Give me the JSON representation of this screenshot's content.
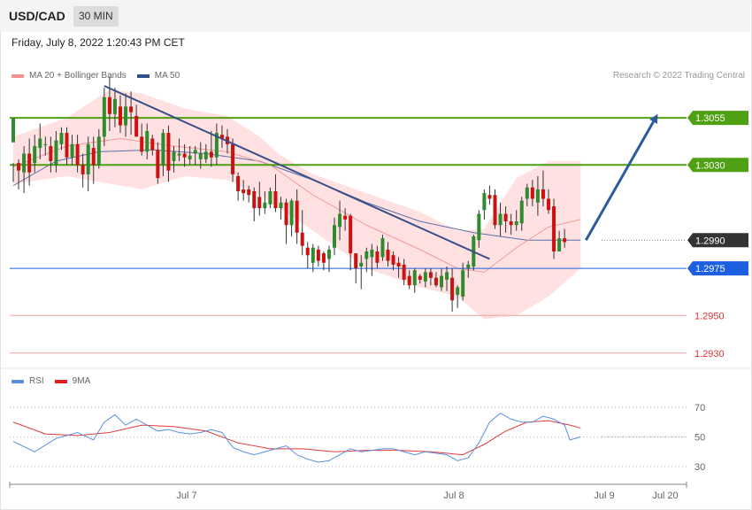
{
  "header": {
    "symbol": "USD/CAD",
    "timeframe": "30 MIN"
  },
  "datetime": "Friday, July 8, 2022 1:20:43 PM CET",
  "legend": {
    "ma20_label": "MA 20 + Bollinger Bands",
    "ma50_label": "MA 50",
    "credit": "Research © 2022 Trading Central",
    "rsi_label": "RSI",
    "rsi_ma_label": "9MA"
  },
  "colors": {
    "band": "#ffe1e1",
    "ma20": "#f19a9a",
    "ma50": "#5b6fa8",
    "up": "#2e8b2e",
    "down": "#cc1111",
    "trend": "#3a4f8a",
    "arrow": "#2e5aa0",
    "resistance": "#4fa012",
    "pivot": "#333333",
    "support1": "#1c5fe0",
    "support2": "#f0a0a0",
    "rsi": "#5a8fe0",
    "rsi_ma": "#e23b3b"
  },
  "chart_data": [
    {
      "type": "candlestick",
      "price_axis_range": [
        1.292,
        1.308
      ],
      "levels": [
        {
          "label": "1.3055",
          "value": 1.3055,
          "kind": "resistance"
        },
        {
          "label": "1.3030",
          "value": 1.303,
          "kind": "resistance"
        },
        {
          "label": "1.2990",
          "value": 1.299,
          "kind": "pivot"
        },
        {
          "label": "1.2975",
          "value": 1.2975,
          "kind": "support"
        },
        {
          "label": "1.2950",
          "value": 1.295,
          "kind": "support"
        },
        {
          "label": "1.2930",
          "value": 1.293,
          "kind": "support"
        }
      ],
      "x_ticks": [
        "Jul 7",
        "Jul 8",
        "Jul 9",
        "Jul 20"
      ],
      "candles": [
        [
          1.3042,
          1.3055,
          1.3031,
          1.3021
        ],
        [
          1.3031,
          1.3027,
          1.3033,
          1.3017
        ],
        [
          1.3026,
          1.3036,
          1.304,
          1.3015
        ],
        [
          1.3036,
          1.3026,
          1.3044,
          1.3019
        ],
        [
          1.3031,
          1.304,
          1.3046,
          1.3026
        ],
        [
          1.3039,
          1.3044,
          1.3052,
          1.3033
        ],
        [
          1.3041,
          1.3041,
          1.3045,
          1.3035
        ],
        [
          1.304,
          1.3032,
          1.3045,
          1.3026
        ],
        [
          1.303,
          1.3043,
          1.3048,
          1.3026
        ],
        [
          1.3041,
          1.3047,
          1.305,
          1.3038
        ],
        [
          1.3047,
          1.3034,
          1.305,
          1.303
        ],
        [
          1.3034,
          1.3041,
          1.3046,
          1.303
        ],
        [
          1.3041,
          1.303,
          1.3046,
          1.3026
        ],
        [
          1.303,
          1.3025,
          1.3036,
          1.3018
        ],
        [
          1.3025,
          1.3041,
          1.3045,
          1.3016
        ],
        [
          1.3039,
          1.303,
          1.3045,
          1.302
        ],
        [
          1.303,
          1.3045,
          1.3049,
          1.3028
        ],
        [
          1.3045,
          1.3066,
          1.3071,
          1.304
        ],
        [
          1.3066,
          1.3057,
          1.3077,
          1.3048
        ],
        [
          1.3057,
          1.3065,
          1.3071,
          1.305
        ],
        [
          1.3061,
          1.3051,
          1.3067,
          1.3047
        ],
        [
          1.3051,
          1.3061,
          1.3068,
          1.3045
        ],
        [
          1.3061,
          1.3058,
          1.3069,
          1.3046
        ],
        [
          1.3056,
          1.3045,
          1.3062,
          1.3045
        ],
        [
          1.3045,
          1.3037,
          1.3052,
          1.3035
        ],
        [
          1.3037,
          1.3048,
          1.3052,
          1.3033
        ],
        [
          1.3044,
          1.3038,
          1.3046,
          1.3035
        ],
        [
          1.3038,
          1.3023,
          1.3042,
          1.302
        ],
        [
          1.303,
          1.3047,
          1.3049,
          1.3024
        ],
        [
          1.3047,
          1.3027,
          1.3051,
          1.3021
        ],
        [
          1.3032,
          1.3037,
          1.304,
          1.3026
        ],
        [
          1.3035,
          1.3036,
          1.3044,
          1.3032
        ],
        [
          1.3036,
          1.3034,
          1.3041,
          1.3029
        ],
        [
          1.3033,
          1.3035,
          1.304,
          1.303
        ],
        [
          1.3036,
          1.3038,
          1.304,
          1.303
        ],
        [
          1.3033,
          1.3036,
          1.3042,
          1.3028
        ],
        [
          1.3033,
          1.3037,
          1.3041,
          1.3031
        ],
        [
          1.3037,
          1.3034,
          1.3048,
          1.3029
        ],
        [
          1.3034,
          1.3047,
          1.3052,
          1.303
        ],
        [
          1.3046,
          1.3044,
          1.3051,
          1.3039
        ],
        [
          1.3045,
          1.3041,
          1.3049,
          1.3036
        ],
        [
          1.3041,
          1.3025,
          1.3044,
          1.3021
        ],
        [
          1.3024,
          1.3016,
          1.3026,
          1.3011
        ],
        [
          1.3017,
          1.3015,
          1.3022,
          1.3011
        ],
        [
          1.3017,
          1.3014,
          1.3019,
          1.301
        ],
        [
          1.3016,
          1.3007,
          1.3018,
          1.3
        ],
        [
          1.3013,
          1.3007,
          1.3021,
          1.3003
        ],
        [
          1.3007,
          1.301,
          1.3016,
          1.3004
        ],
        [
          1.3009,
          1.3016,
          1.3018,
          1.3007
        ],
        [
          1.3016,
          1.3007,
          1.3025,
          1.3005
        ],
        [
          1.3007,
          1.301,
          1.3013,
          1.3001
        ],
        [
          1.301,
          1.2998,
          1.3012,
          1.2988
        ],
        [
          1.2998,
          1.3011,
          1.3012,
          1.2992
        ],
        [
          1.3011,
          1.2994,
          1.3017,
          1.2988
        ],
        [
          1.2994,
          1.2987,
          1.3006,
          1.2982
        ],
        [
          1.2986,
          1.2982,
          1.2989,
          1.2975
        ],
        [
          1.2978,
          1.2986,
          1.2988,
          1.2973
        ],
        [
          1.2985,
          1.2979,
          1.2987,
          1.2976
        ],
        [
          1.2983,
          1.2978,
          1.2984,
          1.2974
        ],
        [
          1.298,
          1.2985,
          1.2987,
          1.2973
        ],
        [
          1.2986,
          1.2998,
          1.3002,
          1.2982
        ],
        [
          1.2997,
          1.3004,
          1.3011,
          1.299
        ],
        [
          1.3003,
          1.3001,
          1.3007,
          1.2995
        ],
        [
          1.3003,
          1.2983,
          1.3004,
          1.2974
        ],
        [
          1.2983,
          1.2975,
          1.2983,
          1.2967
        ],
        [
          1.2976,
          1.2978,
          1.2982,
          1.2964
        ],
        [
          1.298,
          1.2984,
          1.2986,
          1.2973
        ],
        [
          1.2981,
          1.2985,
          1.2988,
          1.2971
        ],
        [
          1.2984,
          1.2978,
          1.2987,
          1.2975
        ],
        [
          1.2981,
          1.2991,
          1.2993,
          1.2979
        ],
        [
          1.2985,
          1.2979,
          1.2989,
          1.2976
        ],
        [
          1.2982,
          1.2977,
          1.2984,
          1.2974
        ],
        [
          1.2978,
          1.2976,
          1.2981,
          1.297
        ],
        [
          1.2977,
          1.2969,
          1.298,
          1.2966
        ],
        [
          1.2971,
          1.2966,
          1.2974,
          1.2964
        ],
        [
          1.2966,
          1.2974,
          1.2975,
          1.2962
        ],
        [
          1.2971,
          1.2969,
          1.2972,
          1.2967
        ],
        [
          1.2968,
          1.2973,
          1.2975,
          1.2965
        ],
        [
          1.2973,
          1.297,
          1.2975,
          1.2966
        ],
        [
          1.297,
          1.2966,
          1.2973,
          1.2965
        ],
        [
          1.2965,
          1.2971,
          1.2975,
          1.2963
        ],
        [
          1.2969,
          1.2973,
          1.2976,
          1.2963
        ],
        [
          1.297,
          1.2958,
          1.2975,
          1.2952
        ],
        [
          1.2961,
          1.2965,
          1.2966,
          1.2954
        ],
        [
          1.296,
          1.2974,
          1.2978,
          1.2958
        ],
        [
          1.2975,
          1.2977,
          1.2979,
          1.297
        ],
        [
          1.2976,
          1.2992,
          1.2993,
          1.2974
        ],
        [
          1.299,
          1.3004,
          1.3006,
          1.2986
        ],
        [
          1.3006,
          1.3015,
          1.3017,
          1.3001
        ],
        [
          1.3014,
          1.3012,
          1.3019,
          1.3009
        ],
        [
          1.3014,
          1.2998,
          1.3017,
          1.2996
        ],
        [
          1.2998,
          1.3004,
          1.301,
          1.2992
        ],
        [
          1.3004,
          1.3,
          1.3008,
          1.2994
        ],
        [
          1.3,
          1.2998,
          1.3004,
          1.2993
        ],
        [
          1.2998,
          1.3,
          1.3006,
          1.2995
        ],
        [
          1.2999,
          1.3011,
          1.3013,
          1.2995
        ],
        [
          1.3012,
          1.3018,
          1.302,
          1.3008
        ],
        [
          1.3018,
          1.3012,
          1.3022,
          1.3008
        ],
        [
          1.301,
          1.3017,
          1.3024,
          1.3003
        ],
        [
          1.3017,
          1.3012,
          1.3027,
          1.3008
        ],
        [
          1.3012,
          1.3006,
          1.3017,
          1.3004
        ],
        [
          1.3008,
          1.2984,
          1.3012,
          1.298
        ],
        [
          1.2984,
          1.2991,
          1.2995,
          1.2985
        ],
        [
          1.2991,
          1.2989,
          1.2996,
          1.2986
        ]
      ],
      "ma20": [
        [
          0,
          1.3029
        ],
        [
          10,
          1.304
        ],
        [
          20,
          1.3044
        ],
        [
          30,
          1.304
        ],
        [
          40,
          1.3037
        ],
        [
          48,
          1.303
        ],
        [
          56,
          1.3014
        ],
        [
          66,
          1.2998
        ],
        [
          76,
          1.2985
        ],
        [
          83,
          1.2975
        ],
        [
          88,
          1.2973
        ],
        [
          94,
          1.2986
        ],
        [
          100,
          1.2997
        ],
        [
          106,
          1.3001
        ]
      ],
      "ma50": [
        [
          0,
          1.3019
        ],
        [
          8,
          1.3032
        ],
        [
          16,
          1.3037
        ],
        [
          26,
          1.3038
        ],
        [
          36,
          1.3036
        ],
        [
          46,
          1.3032
        ],
        [
          56,
          1.3022
        ],
        [
          66,
          1.301
        ],
        [
          76,
          1.3
        ],
        [
          86,
          1.2994
        ],
        [
          96,
          1.299
        ],
        [
          106,
          1.299
        ]
      ],
      "bollinger_upper": [
        [
          0,
          1.3045
        ],
        [
          10,
          1.3055
        ],
        [
          18,
          1.307
        ],
        [
          24,
          1.3068
        ],
        [
          32,
          1.306
        ],
        [
          40,
          1.3056
        ],
        [
          46,
          1.3045
        ],
        [
          50,
          1.3035
        ],
        [
          56,
          1.3025
        ],
        [
          66,
          1.3015
        ],
        [
          76,
          1.3005
        ],
        [
          83,
          1.2995
        ],
        [
          88,
          1.2996
        ],
        [
          94,
          1.3023
        ],
        [
          100,
          1.3032
        ],
        [
          106,
          1.3032
        ]
      ],
      "bollinger_lower": [
        [
          0,
          1.302
        ],
        [
          10,
          1.3024
        ],
        [
          18,
          1.302
        ],
        [
          24,
          1.3017
        ],
        [
          32,
          1.3024
        ],
        [
          40,
          1.3022
        ],
        [
          46,
          1.3014
        ],
        [
          56,
          1.2995
        ],
        [
          66,
          1.2975
        ],
        [
          76,
          1.2965
        ],
        [
          83,
          1.296
        ],
        [
          88,
          1.2948
        ],
        [
          94,
          1.295
        ],
        [
          100,
          1.296
        ],
        [
          106,
          1.2975
        ]
      ],
      "trendline": [
        [
          17,
          1.3072
        ],
        [
          89,
          1.298
        ]
      ],
      "projection_arrow": {
        "from": [
          107,
          1.299
        ],
        "to": [
          120,
          1.3055
        ]
      }
    },
    {
      "type": "line",
      "title": "RSI",
      "y_ticks": [
        70,
        50,
        30
      ],
      "ylim": [
        20,
        80
      ],
      "series": [
        {
          "name": "RSI",
          "points": [
            [
              0,
              47
            ],
            [
              4,
              40
            ],
            [
              8,
              49
            ],
            [
              12,
              53
            ],
            [
              15,
              48
            ],
            [
              17,
              60
            ],
            [
              19,
              65
            ],
            [
              21,
              58
            ],
            [
              23,
              62
            ],
            [
              25,
              58
            ],
            [
              27,
              54
            ],
            [
              29,
              55
            ],
            [
              31,
              53
            ],
            [
              33,
              52
            ],
            [
              35,
              53
            ],
            [
              37,
              55
            ],
            [
              39,
              53
            ],
            [
              41,
              43
            ],
            [
              43,
              40
            ],
            [
              45,
              38
            ],
            [
              47,
              40
            ],
            [
              49,
              42
            ],
            [
              51,
              44
            ],
            [
              53,
              38
            ],
            [
              55,
              35
            ],
            [
              57,
              33
            ],
            [
              59,
              34
            ],
            [
              61,
              38
            ],
            [
              63,
              42
            ],
            [
              65,
              40
            ],
            [
              67,
              41
            ],
            [
              69,
              42
            ],
            [
              71,
              42
            ],
            [
              73,
              40
            ],
            [
              75,
              38
            ],
            [
              77,
              40
            ],
            [
              79,
              39
            ],
            [
              81,
              38
            ],
            [
              83,
              34
            ],
            [
              85,
              36
            ],
            [
              87,
              46
            ],
            [
              89,
              60
            ],
            [
              91,
              66
            ],
            [
              93,
              62
            ],
            [
              95,
              60
            ],
            [
              97,
              60
            ],
            [
              99,
              64
            ],
            [
              101,
              62
            ],
            [
              103,
              58
            ],
            [
              104,
              48
            ],
            [
              106,
              50
            ]
          ]
        },
        {
          "name": "9MA",
          "points": [
            [
              0,
              60
            ],
            [
              6,
              52
            ],
            [
              12,
              51
            ],
            [
              18,
              53
            ],
            [
              24,
              58
            ],
            [
              30,
              57
            ],
            [
              36,
              54
            ],
            [
              42,
              46
            ],
            [
              48,
              42
            ],
            [
              54,
              42
            ],
            [
              60,
              40
            ],
            [
              66,
              41
            ],
            [
              72,
              41
            ],
            [
              78,
              40
            ],
            [
              84,
              38
            ],
            [
              88,
              45
            ],
            [
              92,
              54
            ],
            [
              96,
              60
            ],
            [
              100,
              61
            ],
            [
              104,
              58
            ],
            [
              106,
              56
            ]
          ]
        }
      ]
    }
  ]
}
